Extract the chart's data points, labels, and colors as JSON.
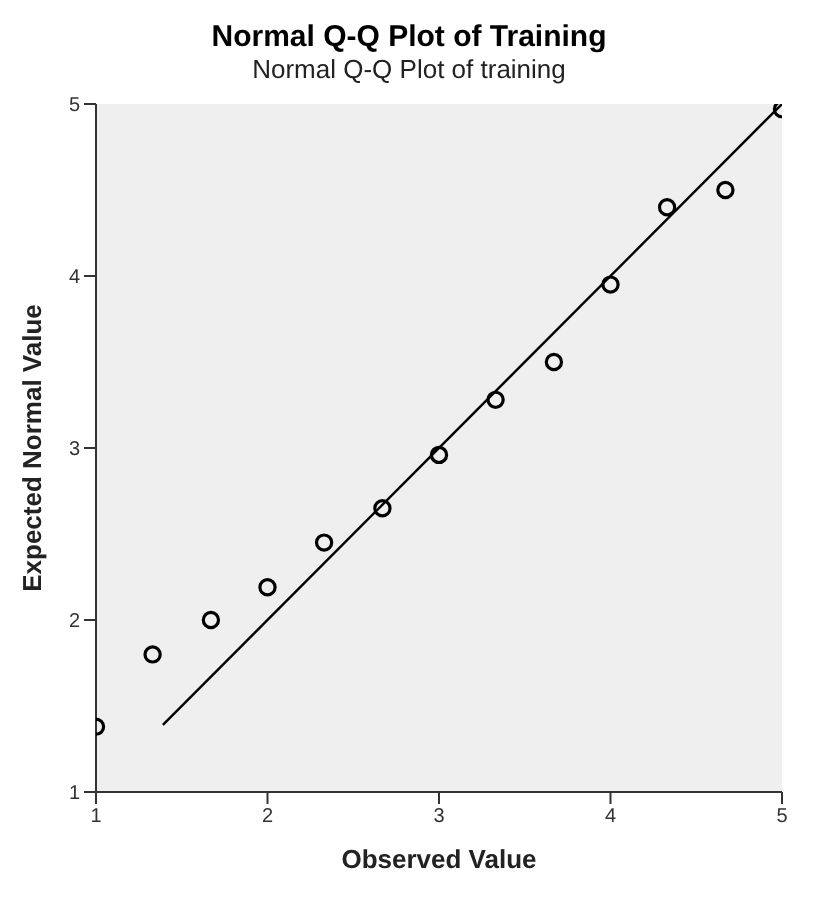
{
  "chart_data": {
    "type": "scatter",
    "title": "Normal Q-Q Plot of Training",
    "subtitle": "Normal Q-Q Plot of training",
    "xlabel": "Observed Value",
    "ylabel": "Expected Normal Value",
    "xlim": [
      1,
      5
    ],
    "ylim": [
      1,
      5
    ],
    "xticks": [
      1,
      2,
      3,
      4,
      5
    ],
    "yticks": [
      1,
      2,
      3,
      4,
      5
    ],
    "grid": false,
    "legend": false,
    "series": [
      {
        "marker": "circle",
        "color": "#000000",
        "x": [
          1,
          1.33,
          1.67,
          2,
          2.33,
          2.67,
          3,
          3.33,
          3.67,
          4,
          4.33,
          4.67,
          5
        ],
        "values": [
          1.38,
          1.8,
          2.0,
          2.19,
          2.45,
          2.65,
          2.96,
          3.28,
          3.5,
          3.95,
          4.4,
          4.5,
          4.97
        ]
      },
      {
        "type": "line",
        "marker": "none",
        "color": "#000000",
        "x": [
          1.39,
          5
        ],
        "values": [
          1.39,
          5
        ]
      }
    ]
  }
}
